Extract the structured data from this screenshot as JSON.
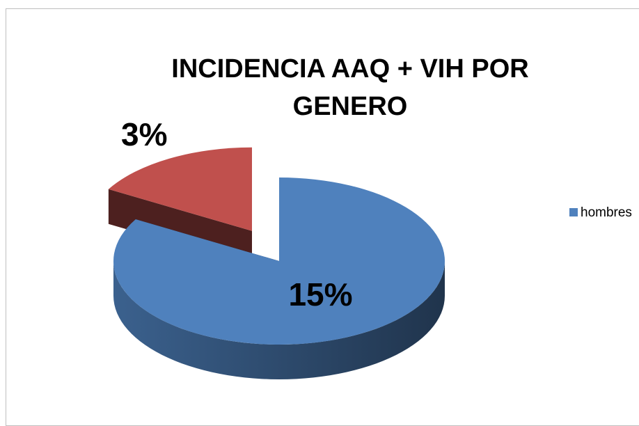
{
  "chart_data": {
    "type": "pie",
    "title": "INCIDENCIA AAQ + VIH POR GENERO",
    "categories": [
      "hombres",
      null
    ],
    "values": [
      15,
      3
    ],
    "value_labels": [
      "15%",
      "3%"
    ],
    "colors": [
      "#4f81bd",
      "#c0504d"
    ],
    "legend": "right"
  }
}
